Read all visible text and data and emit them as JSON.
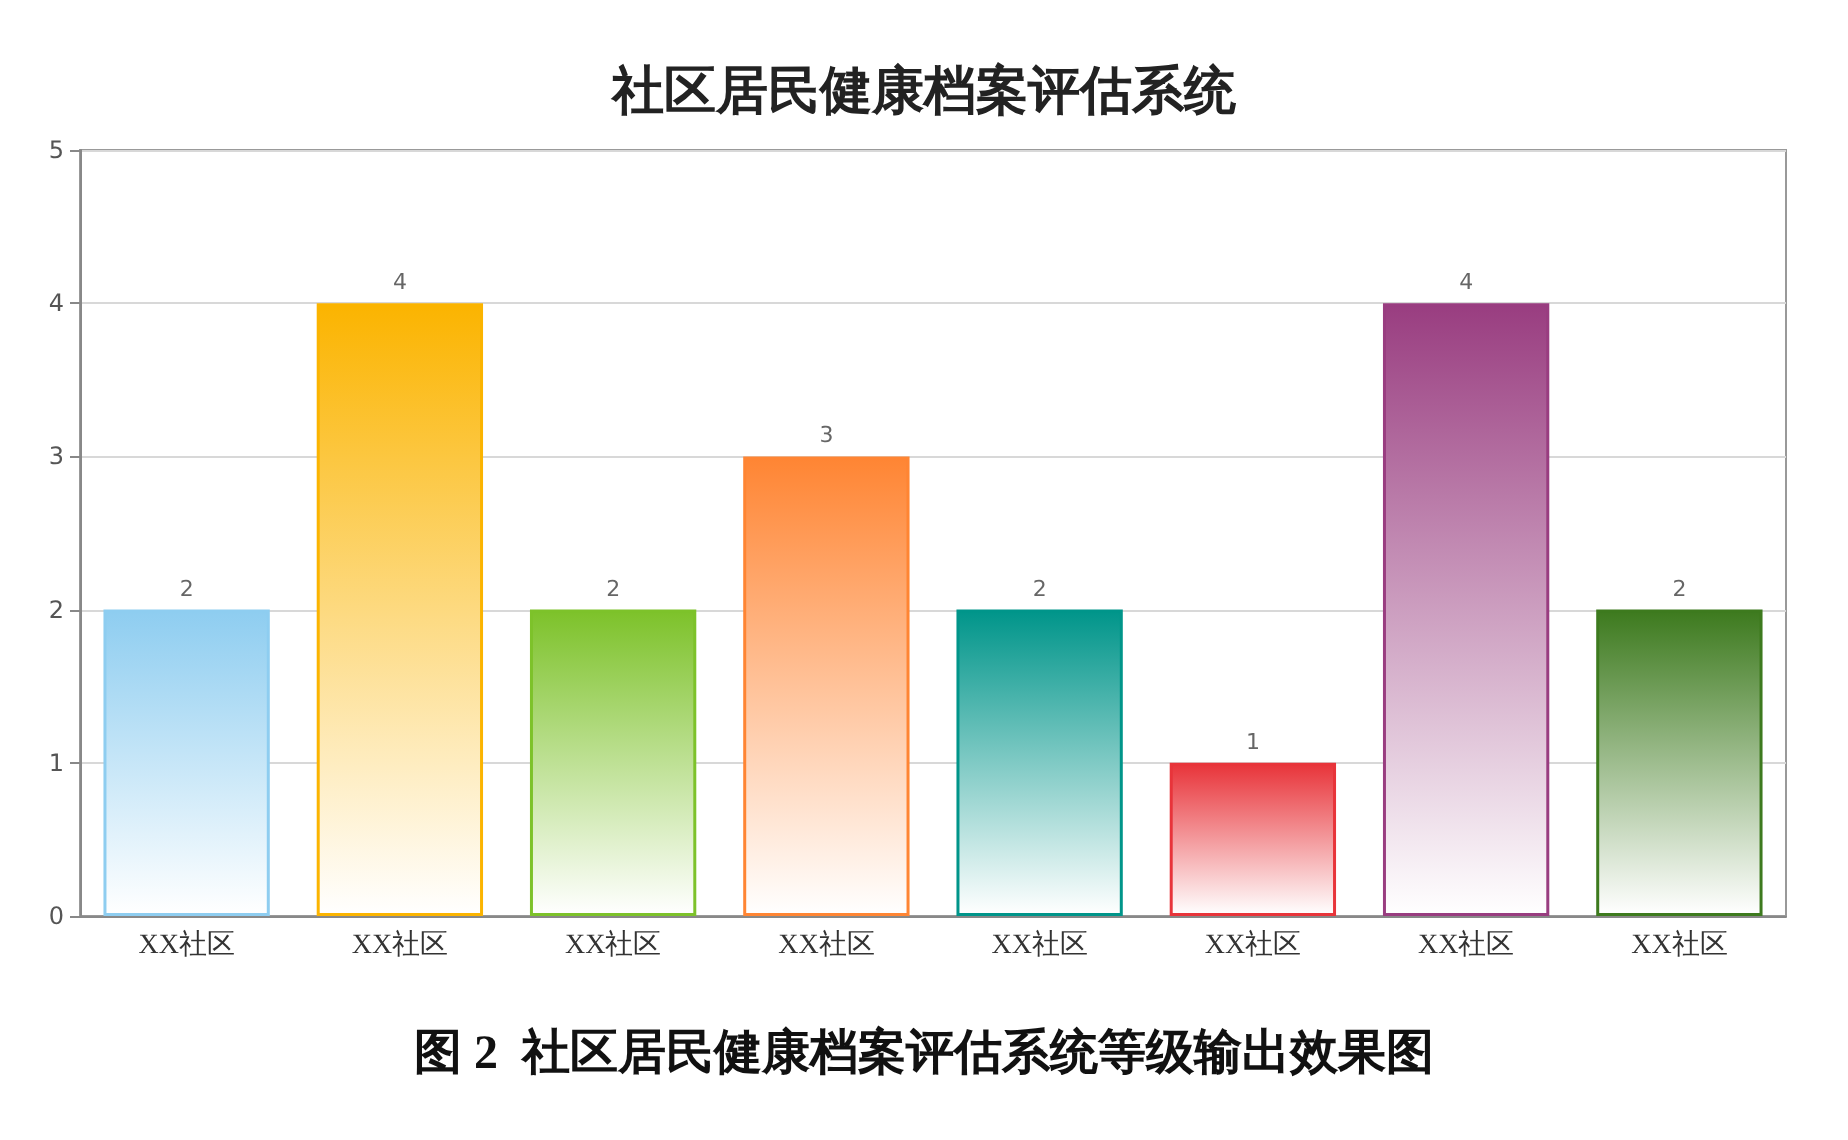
{
  "chart_data": {
    "type": "bar",
    "title": "社区居民健康档案评估系统",
    "categories": [
      "XX社区",
      "XX社区",
      "XX社区",
      "XX社区",
      "XX社区",
      "XX社区",
      "XX社区",
      "XX社区"
    ],
    "values": [
      2,
      4,
      2,
      3,
      2,
      1,
      4,
      2
    ],
    "colors": [
      "#8ecdf0",
      "#fbb400",
      "#7dc22a",
      "#ff8533",
      "#00958a",
      "#e8343a",
      "#993d80",
      "#3d7a1e"
    ],
    "ylim": [
      0,
      5
    ],
    "yticks": [
      0,
      1,
      2,
      3,
      4,
      5
    ],
    "grid": "y",
    "data_labels": true,
    "annotations": [
      "图 2  社区居民健康档案评估系统等级输出效果图"
    ]
  }
}
